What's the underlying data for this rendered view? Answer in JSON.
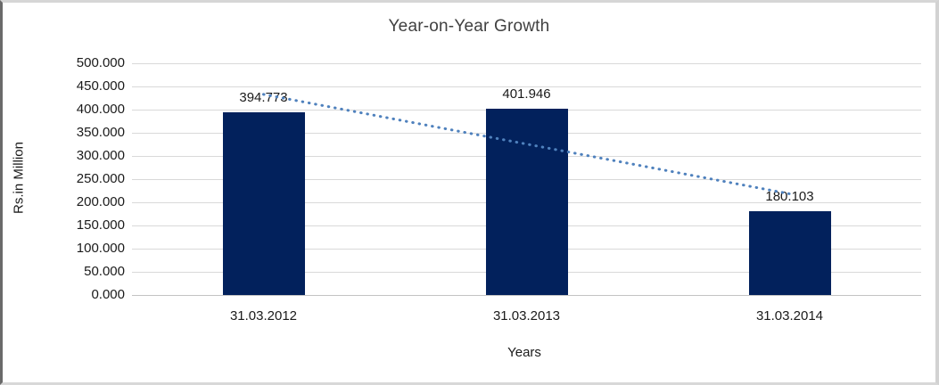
{
  "chart_data": {
    "type": "bar",
    "title": "Year-on-Year Growth",
    "xlabel": "Years",
    "ylabel": "Rs.in Million",
    "categories": [
      "31.03.2012",
      "31.03.2013",
      "31.03.2014"
    ],
    "values": [
      394.773,
      401.946,
      180.103
    ],
    "value_labels": [
      "394.773",
      "401.946",
      "180.103"
    ],
    "ylim": [
      0,
      500
    ],
    "y_tick_step": 50,
    "y_tick_labels": [
      "0.000",
      "50.000",
      "100.000",
      "150.000",
      "200.000",
      "250.000",
      "300.000",
      "350.000",
      "400.000",
      "450.000",
      "500.000"
    ],
    "grid": true,
    "legend": "none",
    "trendline": {
      "type": "linear",
      "style": "dotted"
    },
    "colors": {
      "bar": "#02215C",
      "trendline": "#4F81BD",
      "gridline": "#D9D9D9",
      "axis_line": "#C3C3C3",
      "text": "#1A1A1A",
      "title": "#404040"
    }
  }
}
